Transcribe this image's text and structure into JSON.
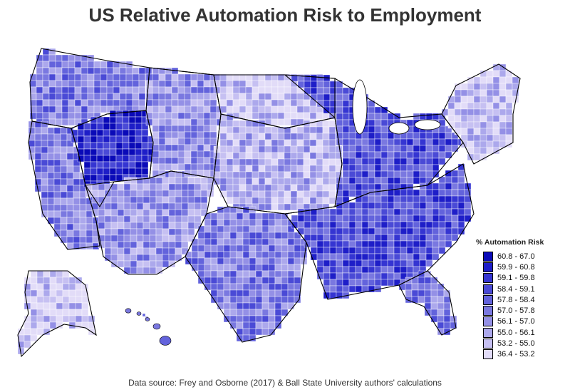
{
  "title": "US Relative Automation Risk to Employment",
  "source": "Data source: Frey and Osborne (2017) & Ball State University authors' calculations",
  "legend": {
    "title": "% Automation Risk",
    "items": [
      {
        "label": "60.8 - 67.0",
        "color": "#0a0ab8"
      },
      {
        "label": "59.9 - 60.8",
        "color": "#1e1ec8"
      },
      {
        "label": "59.1 - 59.8",
        "color": "#3535d2"
      },
      {
        "label": "58.4 - 59.1",
        "color": "#4a4ad6"
      },
      {
        "label": "57.8 - 58.4",
        "color": "#6363dc"
      },
      {
        "label": "57.0 - 57.8",
        "color": "#7a78e0"
      },
      {
        "label": "56.1 - 57.0",
        "color": "#9490e6"
      },
      {
        "label": "55.0 - 56.1",
        "color": "#aca8ec"
      },
      {
        "label": "53.2 - 55.0",
        "color": "#c6c0f2"
      },
      {
        "label": "36.4 - 53.2",
        "color": "#e2dcf8"
      }
    ]
  },
  "map_data": {
    "type": "choropleth",
    "geography": "US counties",
    "regions": [
      {
        "id": "pacific-northwest",
        "class": 5
      },
      {
        "id": "california",
        "class": 5
      },
      {
        "id": "great-basin",
        "class": 1
      },
      {
        "id": "southwest",
        "class": 6
      },
      {
        "id": "rockies",
        "class": 6
      },
      {
        "id": "northern-plains",
        "class": 8
      },
      {
        "id": "central-plains",
        "class": 7
      },
      {
        "id": "texas",
        "class": 5
      },
      {
        "id": "midwest",
        "class": 3
      },
      {
        "id": "southeast",
        "class": 3
      },
      {
        "id": "northeast",
        "class": 8
      },
      {
        "id": "florida",
        "class": 5
      },
      {
        "id": "alaska",
        "class": 8
      },
      {
        "id": "hawaii",
        "class": 5
      }
    ]
  }
}
